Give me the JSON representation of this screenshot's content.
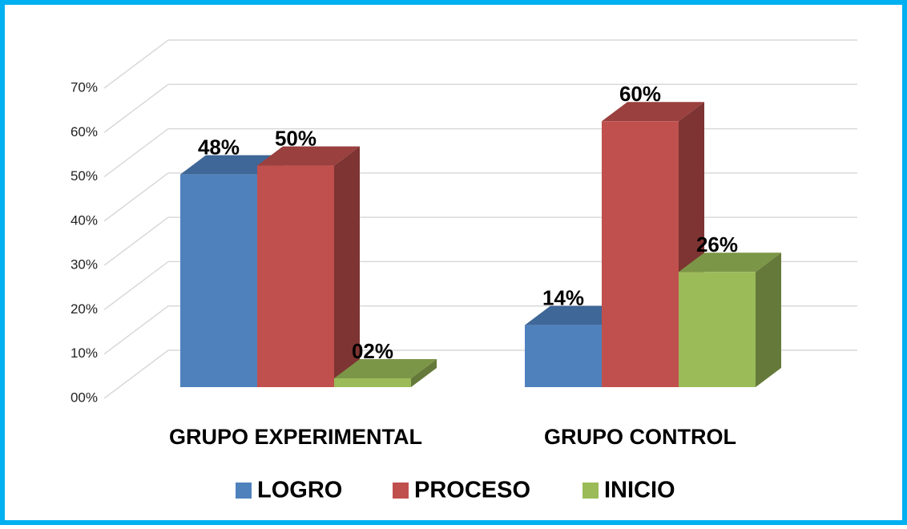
{
  "chart_data": {
    "type": "bar3d",
    "categories": [
      "GRUPO EXPERIMENTAL",
      "GRUPO CONTROL"
    ],
    "series": [
      {
        "name": "LOGRO",
        "color": "#4f81bd",
        "values": [
          48,
          14
        ],
        "value_labels": [
          "48%",
          "14%"
        ]
      },
      {
        "name": "PROCESO",
        "color": "#c0504d",
        "values": [
          50,
          60
        ],
        "value_labels": [
          "50%",
          "60%"
        ]
      },
      {
        "name": "INICIO",
        "color": "#9bbb59",
        "values": [
          2,
          26
        ],
        "value_labels": [
          "02%",
          "26%"
        ]
      }
    ],
    "ylim": [
      0,
      70
    ],
    "yticks": [
      {
        "value": 0,
        "label": "00%"
      },
      {
        "value": 10,
        "label": "10%"
      },
      {
        "value": 20,
        "label": "20%"
      },
      {
        "value": 30,
        "label": "30%"
      },
      {
        "value": 40,
        "label": "40%"
      },
      {
        "value": 50,
        "label": "50%"
      },
      {
        "value": 60,
        "label": "60%"
      },
      {
        "value": 70,
        "label": "70%"
      }
    ],
    "grid": true,
    "legend": "bottom"
  }
}
